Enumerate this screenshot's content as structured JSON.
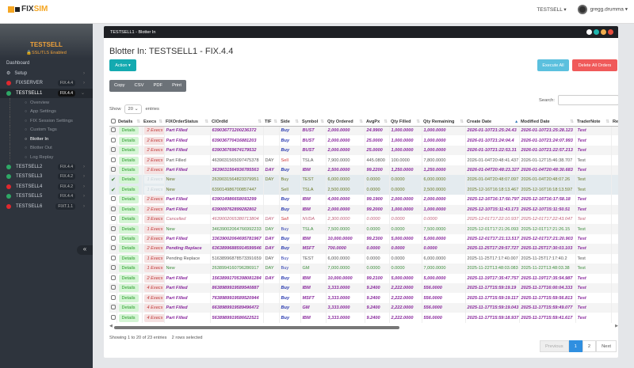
{
  "app": {
    "logo_text_a": "FIX",
    "logo_text_b": "SIM",
    "server_menu": "TESTSELL ▾",
    "user_menu": "gregg.drumma ▾"
  },
  "sidebar": {
    "title": "TESTSELL",
    "ssl": "🔒SSL/TLS Enabled",
    "dashboard": "Dashboard",
    "setup": "Setup",
    "sessions": [
      {
        "name": "FIXSERVER",
        "fix": "FIX.4.4",
        "status": "red"
      },
      {
        "name": "TESTSELL1",
        "fix": "FIX.4.4",
        "status": "green",
        "active": true
      },
      {
        "name": "TESTSELL2",
        "fix": "FIX.4.4",
        "status": "green"
      },
      {
        "name": "TESTSELL3",
        "fix": "FIX.4.2",
        "status": "green"
      },
      {
        "name": "TESTSELL4",
        "fix": "FIX.4.2",
        "status": "red"
      },
      {
        "name": "TESTSELL5",
        "fix": "FIX.4.4",
        "status": "green"
      },
      {
        "name": "TESTSELL6",
        "fix": "FIXT.1.1",
        "status": "red"
      }
    ],
    "submenu": [
      "Overview",
      "App Settings",
      "FIX Session Settings",
      "Custom Tags",
      "Blotter In",
      "Blotter Out",
      "Log Replay"
    ],
    "current_submenu": "Blotter In",
    "collapse": "«"
  },
  "panel": {
    "header": "TESTSELL1 - Blotter In",
    "title": "Blotter In: TESTSELL1 - FIX.4.4",
    "action": "Action ▾",
    "execute_all": "Execute All",
    "delete_all": "Delete All Orders",
    "export": [
      "Copy",
      "CSV",
      "PDF",
      "Print"
    ],
    "show_label": "Show",
    "show_value": "20",
    "entries_label": "entries",
    "search_label": "Search:",
    "search_value": "",
    "info": "Showing 1 to 20 of 23 entries    2 rows selected",
    "pagination": {
      "previous": "Previous",
      "pages": [
        "1",
        "2"
      ],
      "current": "1",
      "next": "Next"
    }
  },
  "colors": {
    "accent": "#14aab0",
    "execute": "#5bc0de",
    "delete": "#f05a5a",
    "part_filled": "#8a2a9e",
    "new": "#3f8e3f",
    "cancelled": "#c0607a"
  },
  "table": {
    "columns": [
      "Details",
      "Execs",
      "FIXOrderStatus",
      "ClOrdId",
      "TIF",
      "Side",
      "Symbol",
      "Qty Ordered",
      "AvgPx",
      "Qty Filled",
      "Qty Remaining",
      "Create Date",
      "Modified Date",
      "TraderNote",
      "Re"
    ],
    "sorted_column": "Create Date",
    "rows": [
      {
        "style": "pf",
        "checked": false,
        "execs": "2 Execs",
        "status": "Part Filled",
        "clordid": "639036771200236372",
        "tif": "",
        "side": "Buy",
        "symbol": "BUST",
        "qty": "2,000.0000",
        "avgpx": "24.9900",
        "filled": "1,000.0000",
        "remaining": "1,000.0000",
        "created": "2026-01-10T21:25:24.43",
        "modified": "2026-01-10T21:25:28.123",
        "note": "Test"
      },
      {
        "style": "pf",
        "checked": false,
        "execs": "2 Execs",
        "status": "Part Filled",
        "clordid": "639036770416881203",
        "tif": "",
        "side": "Buy",
        "symbol": "BUST",
        "qty": "2,000.0000",
        "avgpx": "25.0000",
        "filled": "1,000.0000",
        "remaining": "1,000.0000",
        "created": "2026-01-10T21:24:04.4",
        "modified": "2026-01-10T21:24:07.993",
        "note": "Test"
      },
      {
        "style": "pf",
        "checked": false,
        "execs": "2 Execs",
        "status": "Part Filled",
        "clordid": "639036769674179532",
        "tif": "",
        "side": "Buy",
        "symbol": "BUST",
        "qty": "2,000.0000",
        "avgpx": "25.0000",
        "filled": "1,000.0000",
        "remaining": "1,000.0000",
        "created": "2026-01-10T21:22:53.31",
        "modified": "2026-01-10T21:22:57.213",
        "note": "Test"
      },
      {
        "style": "pl",
        "checked": false,
        "execs": "2 Execs",
        "status": "Part Filled",
        "clordid": "4639031565097475378",
        "tif": "DAY",
        "side": "Sell",
        "symbol": "TSLA",
        "qty": "7,900.0000",
        "avgpx": "445.0800",
        "filled": "100.0000",
        "remaining": "7,800.0000",
        "created": "2026-01-04T20:48:41.437",
        "modified": "2026-01-12T15:46:38.707",
        "note": "Test"
      },
      {
        "style": "pf",
        "checked": false,
        "execs": "2 Execs",
        "status": "Part Filled",
        "clordid": "3639031564936785563",
        "tif": "DAY",
        "side": "Buy",
        "symbol": "IBM",
        "qty": "2,500.0000",
        "avgpx": "99.2200",
        "filled": "1,250.0000",
        "remaining": "1,250.0000",
        "created": "2026-01-04T20:48:23.327",
        "modified": "2026-01-04T20:48:30.683",
        "note": "Test"
      },
      {
        "style": "nw",
        "checked": true,
        "execs": "1 Execs",
        "status": "New",
        "clordid": "2639031564823379951",
        "tif": "DAY",
        "side": "Buy",
        "symbol": "TEST",
        "qty": "6,000.0000",
        "avgpx": "0.0000",
        "filled": "0.0000",
        "remaining": "6,000.0000",
        "created": "2026-01-04T20:48:07.097",
        "modified": "2026-01-04T20:48:07.26",
        "note": "Test"
      },
      {
        "style": "nw",
        "checked": true,
        "execs": "1 Execs",
        "status": "New",
        "clordid": "639014986700857447",
        "tif": "",
        "side": "Sell",
        "symbol": "TSLA",
        "qty": "2,500.0000",
        "avgpx": "0.0000",
        "filled": "0.0000",
        "remaining": "2,500.0000",
        "created": "2025-12-16T16:18:13.467",
        "modified": "2025-12-16T16:18:13.597",
        "note": "Test"
      },
      {
        "style": "pf",
        "checked": false,
        "execs": "2 Execs",
        "status": "Part Filled",
        "clordid": "639014986658093299",
        "tif": "",
        "side": "Buy",
        "symbol": "IBM",
        "qty": "4,000.0000",
        "avgpx": "99.1900",
        "filled": "2,000.0000",
        "remaining": "2,000.0000",
        "created": "2025-12-16T16:17:50.797",
        "modified": "2025-12-16T16:17:58.18",
        "note": "Test"
      },
      {
        "style": "pf",
        "checked": false,
        "execs": "2 Execs",
        "status": "Part Filled",
        "clordid": "639009762899282802",
        "tif": "",
        "side": "Buy",
        "symbol": "IBM",
        "qty": "2,000.0000",
        "avgpx": "99.2000",
        "filled": "1,000.0000",
        "remaining": "1,000.0000",
        "created": "2025-12-10T15:11:43.173",
        "modified": "2025-12-10T15:11:50.51",
        "note": "Test"
      },
      {
        "style": "cn",
        "checked": false,
        "execs": "3 Execs",
        "status": "Cancelled",
        "clordid": "4639002065380713804",
        "tif": "DAY",
        "side": "Sell",
        "symbol": "NVDA",
        "qty": "2,300.0000",
        "avgpx": "0.0000",
        "filled": "0.0000",
        "remaining": "0.0000",
        "created": "2025-12-01T17:22:10.937",
        "modified": "2025-12-01T17:22:43.047",
        "note": "Test"
      },
      {
        "style": "nw",
        "checked": false,
        "execs": "1 Execs",
        "status": "New",
        "clordid": "34639002064766992233",
        "tif": "DAY",
        "side": "Buy",
        "symbol": "TSLA",
        "qty": "7,500.0000",
        "avgpx": "0.0000",
        "filled": "0.0000",
        "remaining": "7,500.0000",
        "created": "2025-12-01T17:21:26.093",
        "modified": "2025-12-01T17:21:26.15",
        "note": "Test"
      },
      {
        "style": "pf",
        "checked": false,
        "execs": "2 Execs",
        "status": "Part Filled",
        "clordid": "33639002064695781967",
        "tif": "DAY",
        "side": "Buy",
        "symbol": "IBM",
        "qty": "10,000.0000",
        "avgpx": "99.2300",
        "filled": "5,000.0000",
        "remaining": "5,000.0000",
        "created": "2025-12-01T17:21:13.517",
        "modified": "2025-12-01T17:21:20.903",
        "note": "Test"
      },
      {
        "style": "pf",
        "checked": false,
        "execs": "2 Execs",
        "status": "Pending Replace",
        "clordid": "63638996885914599546",
        "tif": "DAY",
        "side": "Buy",
        "symbol": "MSFT",
        "qty": "700.0000",
        "avgpx": "0.0000",
        "filled": "0.0000",
        "remaining": "0.0000",
        "created": "2025-11-25T17:29:57.727",
        "modified": "2025-11-25T17:30:03.103",
        "note": "Test"
      },
      {
        "style": "pl",
        "checked": false,
        "execs": "1 Execs",
        "status": "Pending Replace",
        "clordid": "51638996878573391659",
        "tif": "DAY",
        "side": "Buy",
        "symbol": "TEST",
        "qty": "6,000.0000",
        "avgpx": "0.0000",
        "filled": "0.0000",
        "remaining": "6,000.0000",
        "created": "2025-11-25T17:17:40.007",
        "modified": "2025-11-25T17:17:40.2",
        "note": "Test"
      },
      {
        "style": "nw",
        "checked": false,
        "execs": "1 Execs",
        "status": "New",
        "clordid": "2638994160796286917",
        "tif": "DAY",
        "side": "Buy",
        "symbol": "GM",
        "qty": "7,000.0000",
        "avgpx": "0.0000",
        "filled": "0.0000",
        "remaining": "7,000.0000",
        "created": "2025-11-22T13:48:03.083",
        "modified": "2025-11-22T13:48:03.38",
        "note": "Test"
      },
      {
        "style": "pf",
        "checked": false,
        "execs": "2 Execs",
        "status": "Part Filled",
        "clordid": "15638991705398081284",
        "tif": "DAY",
        "side": "Buy",
        "symbol": "IBM",
        "qty": "10,000.0000",
        "avgpx": "99.2100",
        "filled": "5,000.0000",
        "remaining": "5,000.0000",
        "created": "2025-11-19T17:35:47.757",
        "modified": "2025-11-19T17:35:54.987",
        "note": "Test"
      },
      {
        "style": "pf",
        "checked": false,
        "execs": "4 Execs",
        "status": "Part Filled",
        "clordid": "8638989919589540887",
        "tif": "",
        "side": "Buy",
        "symbol": "IBM",
        "qty": "3,333.0000",
        "avgpx": "9.2400",
        "filled": "2,222.0000",
        "remaining": "556.0000",
        "created": "2025-11-17T15:59:19.19",
        "modified": "2025-11-17T16:00:04.333",
        "note": "Test"
      },
      {
        "style": "pf",
        "checked": false,
        "execs": "4 Execs",
        "status": "Part Filled",
        "clordid": "7638989919589520944",
        "tif": "",
        "side": "Buy",
        "symbol": "MSFT",
        "qty": "3,333.0000",
        "avgpx": "9.2400",
        "filled": "2,222.0000",
        "remaining": "556.0000",
        "created": "2025-11-17T15:59:19.117",
        "modified": "2025-11-17T15:59:56.813",
        "note": "Test"
      },
      {
        "style": "pf",
        "checked": false,
        "execs": "4 Execs",
        "status": "Part Filled",
        "clordid": "6638989919589496472",
        "tif": "",
        "side": "Buy",
        "symbol": "GM",
        "qty": "3,333.0000",
        "avgpx": "9.2400",
        "filled": "2,222.0000",
        "remaining": "556.0000",
        "created": "2025-11-17T15:59:19.043",
        "modified": "2025-11-17T15:59:49.077",
        "note": "Test"
      },
      {
        "style": "pf",
        "checked": false,
        "execs": "4 Execs",
        "status": "Part Filled",
        "clordid": "5638989919586622521",
        "tif": "",
        "side": "Buy",
        "symbol": "IBM",
        "qty": "3,333.0000",
        "avgpx": "9.2400",
        "filled": "2,222.0000",
        "remaining": "556.0000",
        "created": "2025-11-17T15:59:18.937",
        "modified": "2025-11-17T15:59:41.617",
        "note": "Test"
      }
    ],
    "details_label": "Details"
  }
}
